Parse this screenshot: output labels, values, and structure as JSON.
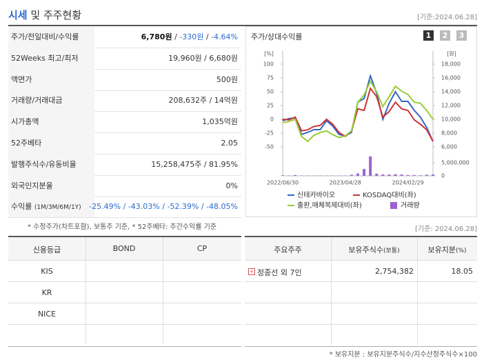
{
  "header": {
    "title_main": "시세",
    "title_rest": "및 주주현황",
    "date": "[기준:2024.06.28]"
  },
  "price_table": {
    "rows": [
      {
        "label": "주가/전일대비/수익률",
        "parts": [
          "6,780원",
          " / ",
          "-330원",
          " / ",
          "-4.64%"
        ]
      },
      {
        "label": "52Weeks 최고/최저",
        "parts": [
          "19,960원 / 6,680원"
        ]
      },
      {
        "label": "액면가",
        "parts": [
          "500원"
        ]
      },
      {
        "label": "거래량/거래대금",
        "parts": [
          "208,632주 / 14억원"
        ]
      },
      {
        "label": "시가총액",
        "parts": [
          "1,035억원"
        ]
      },
      {
        "label": "52주베타",
        "parts": [
          "2.05"
        ]
      },
      {
        "label": "발행주식수/유동비율",
        "parts": [
          "15,258,475주 / 81.95%"
        ]
      },
      {
        "label": "외국인지분율",
        "parts": [
          "0%"
        ]
      },
      {
        "label": "수익률",
        "label_note": "(1M/3M/6M/1Y)",
        "parts": [
          "-25.49%",
          " / ",
          "-43.03%",
          " / ",
          "-52.39%",
          " / ",
          "-48.05%"
        ]
      }
    ],
    "footnote": "* 수정주가(차트포함), 보통주 기준, * 52주베타: 주간수익률 기준"
  },
  "chart_panel": {
    "title": "주가/상대수익률",
    "tabs": [
      "1",
      "2",
      "3"
    ]
  },
  "chart_data": {
    "type": "line",
    "categories": [
      "2022/06/30",
      null,
      null,
      null,
      null,
      null,
      null,
      null,
      null,
      null,
      "2023/04/28",
      null,
      null,
      null,
      null,
      null,
      null,
      null,
      null,
      null,
      "2024/02/29",
      null,
      null,
      null,
      null
    ],
    "ylabel": "[%]",
    "y2label": "[원]",
    "ylim": [
      -50,
      100
    ],
    "yticks": [
      100,
      75,
      50,
      25,
      0,
      -25,
      -50
    ],
    "y2lim": [
      6000,
      18000
    ],
    "y2ticks": [
      {
        "value": 18000,
        "label": "18,000"
      },
      {
        "value": 16000,
        "label": "16,000"
      },
      {
        "value": 14000,
        "label": "14,000"
      },
      {
        "value": 12000,
        "label": "12,000"
      },
      {
        "value": 10000,
        "label": "10,000"
      },
      {
        "value": 8000,
        "label": "8,000"
      },
      {
        "value": 6000,
        "label": "6,000"
      }
    ],
    "grid": false,
    "series": [
      {
        "name": "신테카바이오",
        "color": "#3366cc",
        "axis": "y2",
        "values": [
          9800,
          10100,
          10200,
          7800,
          8100,
          8500,
          8500,
          9800,
          9000,
          7800,
          7600,
          8100,
          12500,
          13000,
          16300,
          13800,
          10000,
          12300,
          14000,
          12600,
          12600,
          11300,
          10300,
          8800,
          6800
        ]
      },
      {
        "name": "KOSDAQ대비(좌)",
        "color": "#cc3333",
        "values": [
          0,
          -1,
          4,
          -21,
          -19,
          -13,
          -11,
          0,
          -9,
          -24,
          -31,
          -21,
          19,
          16,
          56,
          41,
          4,
          14,
          31,
          19,
          16,
          -1,
          -9,
          -19,
          -40
        ]
      },
      {
        "name": "출판,매체복제대비(좌)",
        "color": "#99cc33",
        "values": [
          -6,
          -4,
          0,
          -31,
          -40,
          -29,
          -24,
          -21,
          -28,
          -33,
          -30,
          -21,
          31,
          44,
          69,
          50,
          23,
          41,
          60,
          51,
          45,
          31,
          29,
          16,
          0
        ]
      }
    ],
    "volume": {
      "name": "거래량",
      "color": "#9966cc",
      "values": [
        200000,
        100000,
        300000,
        100000,
        100000,
        100000,
        100000,
        100000,
        100000,
        100000,
        100000,
        400000,
        900000,
        2600000,
        7400000,
        800000,
        500000,
        500000,
        600000,
        500000,
        300000,
        300000,
        200000,
        400000,
        500000
      ],
      "lim": [
        0,
        5000000
      ],
      "ticks": [
        {
          "value": 5000000,
          "label": "5,000,000"
        },
        0
      ]
    }
  },
  "credit_table": {
    "header": [
      "신용등급",
      "BOND",
      "CP"
    ],
    "agencies": [
      "KIS",
      "KR",
      "NICE"
    ]
  },
  "holder_table": {
    "header": [
      "주요주주",
      "보유주식수",
      "(보통)",
      "보유지분",
      "(%)"
    ],
    "rows": [
      [
        "정종선 외 7인",
        "2,754,382",
        "18.05"
      ]
    ],
    "date": "[기준: 2024.06.28]",
    "footnote": "* 보유지분 : 보유지분주식수/지수산정주식수×100"
  }
}
